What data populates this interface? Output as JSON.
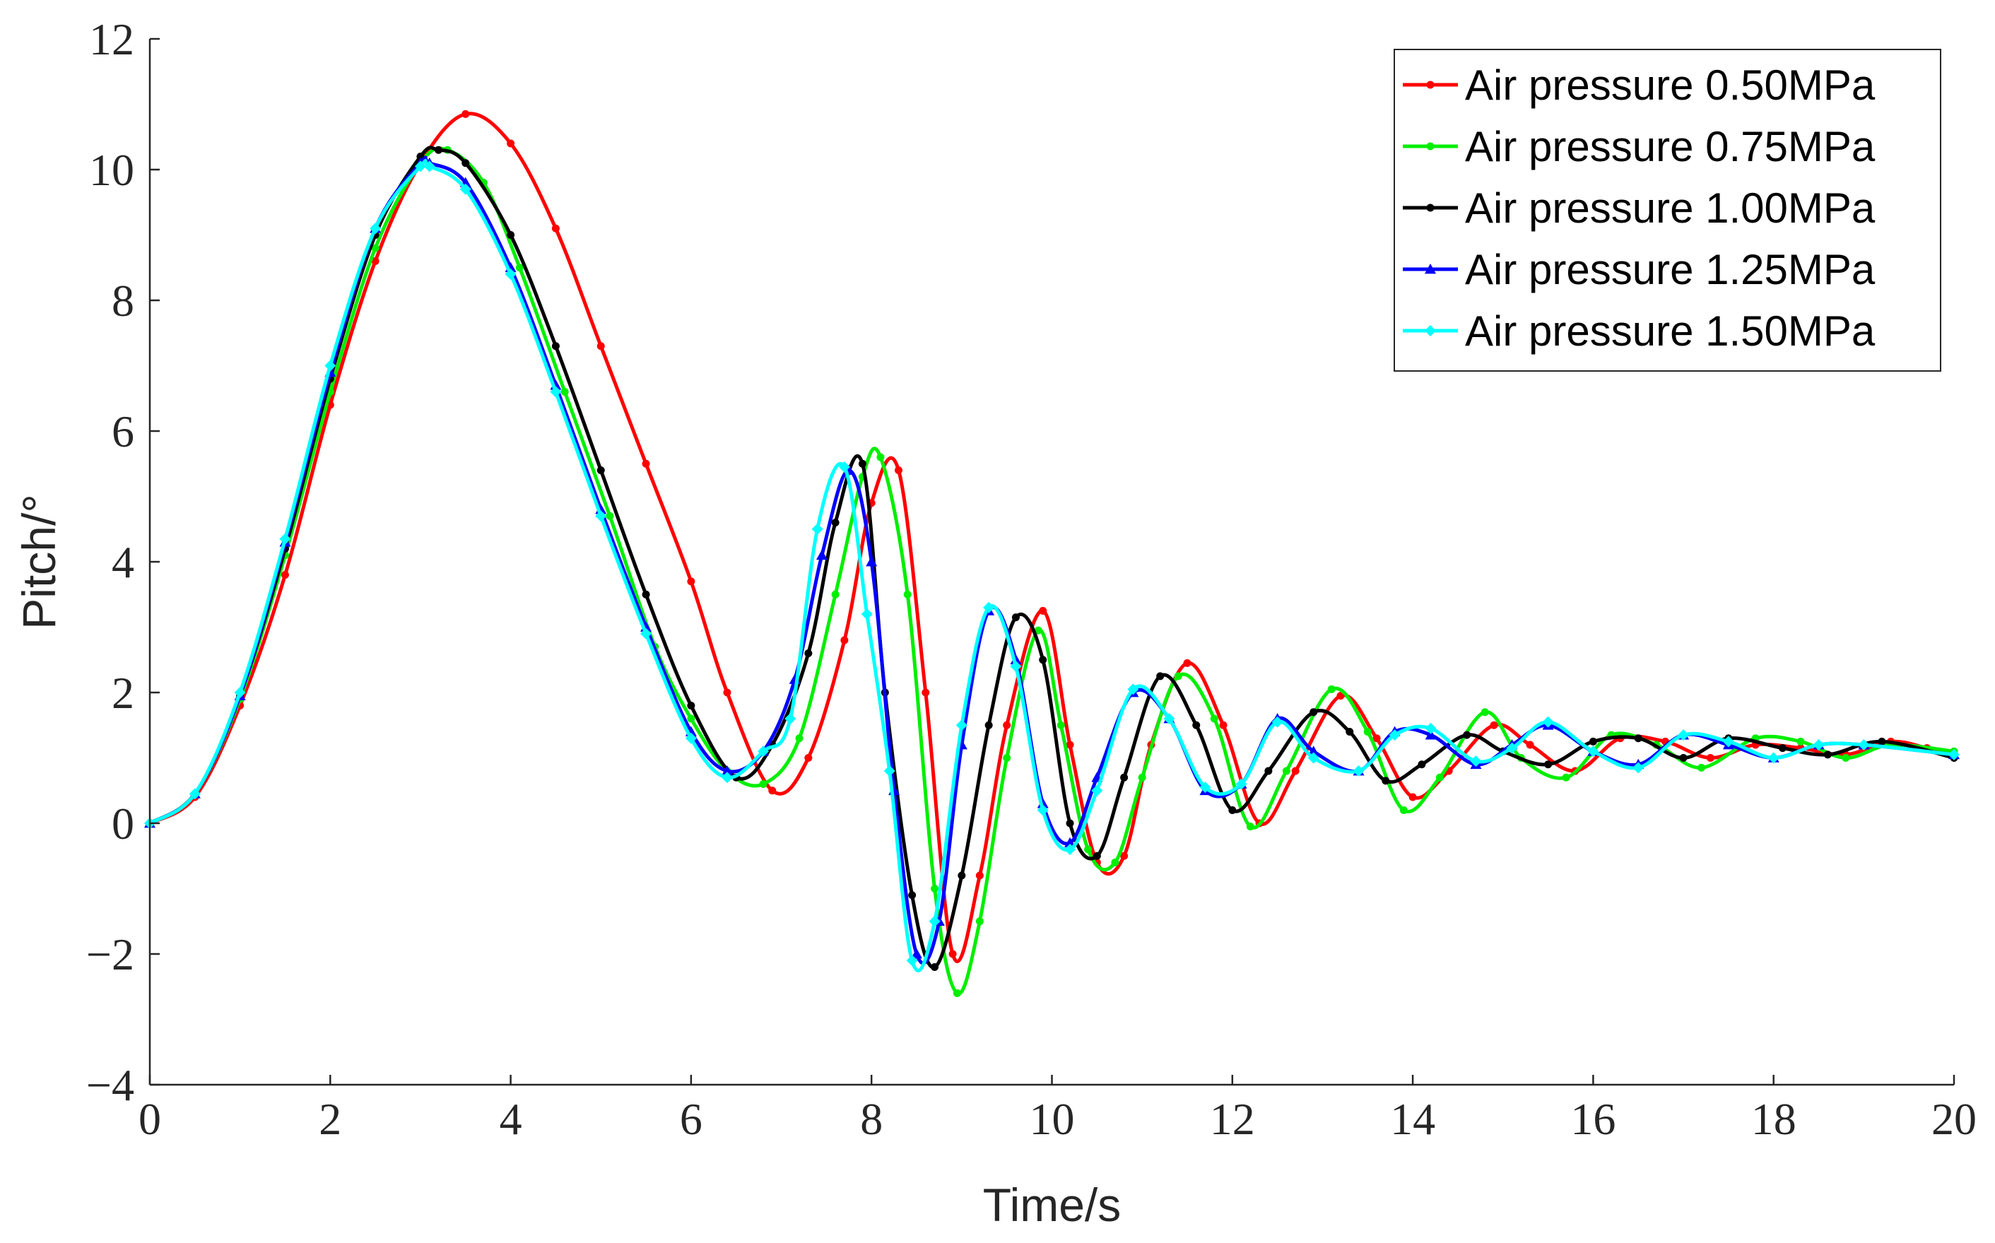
{
  "chart_data": {
    "type": "line",
    "title": "",
    "xlabel": "Time/s",
    "ylabel": "Pitch/°",
    "xlim": [
      0,
      20
    ],
    "ylim": [
      -4,
      12
    ],
    "xticks": [
      0,
      2,
      4,
      6,
      8,
      10,
      12,
      14,
      16,
      18,
      20
    ],
    "yticks": [
      -4,
      -2,
      0,
      2,
      4,
      6,
      8,
      10,
      12
    ],
    "xtick_labels": [
      "0",
      "2",
      "4",
      "6",
      "8",
      "10",
      "12",
      "14",
      "16",
      "18",
      "20"
    ],
    "ytick_labels": [
      "−4",
      "−2",
      "0",
      "2",
      "4",
      "6",
      "8",
      "10",
      "12"
    ],
    "grid": false,
    "legend_position": "top-right",
    "series": [
      {
        "name": "Air pressure 0.50MPa",
        "color": "#ff0000",
        "marker": "dot",
        "x": [
          0,
          0.5,
          1,
          1.5,
          2,
          2.5,
          3,
          3.5,
          4,
          4.5,
          5,
          5.5,
          6,
          6.4,
          6.9,
          7.3,
          7.7,
          8.0,
          8.3,
          8.6,
          8.9,
          9.2,
          9.5,
          9.9,
          10.2,
          10.5,
          10.8,
          11.1,
          11.5,
          11.9,
          12.3,
          12.7,
          13.2,
          13.6,
          14.0,
          14.4,
          14.9,
          15.3,
          15.8,
          16.3,
          16.8,
          17.3,
          17.8,
          18.3,
          18.8,
          19.3,
          19.7,
          20.0
        ],
        "values": [
          0,
          0.4,
          1.8,
          3.8,
          6.4,
          8.6,
          10.1,
          10.85,
          10.4,
          9.1,
          7.3,
          5.5,
          3.7,
          2.0,
          0.5,
          1.0,
          2.8,
          4.9,
          5.4,
          2.0,
          -2.0,
          -0.8,
          1.5,
          3.25,
          1.2,
          -0.6,
          -0.5,
          1.2,
          2.45,
          1.5,
          0.0,
          0.8,
          1.95,
          1.3,
          0.4,
          0.8,
          1.5,
          1.2,
          0.8,
          1.3,
          1.25,
          1.0,
          1.2,
          1.15,
          1.05,
          1.25,
          1.15,
          1.05
        ]
      },
      {
        "name": "Air pressure 0.75MPa",
        "color": "#00ee00",
        "marker": "dot",
        "x": [
          0,
          0.5,
          1,
          1.5,
          2,
          2.5,
          3,
          3.3,
          3.7,
          4.1,
          4.6,
          5.1,
          5.6,
          6.0,
          6.4,
          6.8,
          7.2,
          7.6,
          7.9,
          8.1,
          8.4,
          8.7,
          8.95,
          9.2,
          9.5,
          9.85,
          10.1,
          10.4,
          10.7,
          11.0,
          11.4,
          11.8,
          12.2,
          12.6,
          13.1,
          13.5,
          13.9,
          14.3,
          14.8,
          15.2,
          15.7,
          16.2,
          16.7,
          17.2,
          17.8,
          18.3,
          18.8,
          19.3,
          20.0
        ],
        "values": [
          0,
          0.45,
          1.9,
          4.1,
          6.6,
          8.8,
          10.1,
          10.3,
          9.8,
          8.5,
          6.6,
          4.7,
          2.7,
          1.6,
          0.8,
          0.6,
          1.3,
          3.5,
          5.3,
          5.6,
          3.5,
          -1.0,
          -2.6,
          -1.5,
          1.0,
          2.95,
          1.5,
          -0.4,
          -0.6,
          0.7,
          2.25,
          1.6,
          -0.05,
          0.8,
          2.05,
          1.4,
          0.2,
          0.7,
          1.7,
          1.0,
          0.7,
          1.35,
          1.2,
          0.85,
          1.3,
          1.25,
          1.0,
          1.2,
          1.1
        ]
      },
      {
        "name": "Air pressure 1.00MPa",
        "color": "#000000",
        "marker": "dot",
        "x": [
          0,
          0.5,
          1,
          1.5,
          2,
          2.5,
          3,
          3.2,
          3.5,
          4.0,
          4.5,
          5.0,
          5.5,
          6.0,
          6.5,
          6.9,
          7.3,
          7.6,
          7.9,
          8.15,
          8.45,
          8.7,
          9.0,
          9.3,
          9.6,
          9.9,
          10.2,
          10.5,
          10.8,
          11.2,
          11.6,
          12.0,
          12.4,
          12.9,
          13.3,
          13.7,
          14.1,
          14.6,
          15.0,
          15.5,
          16.0,
          16.5,
          17.0,
          17.5,
          18.1,
          18.6,
          19.2,
          20.0
        ],
        "values": [
          0,
          0.45,
          1.95,
          4.2,
          6.8,
          9.0,
          10.2,
          10.3,
          10.1,
          9.0,
          7.3,
          5.4,
          3.5,
          1.8,
          0.7,
          1.2,
          2.6,
          4.6,
          5.5,
          2.0,
          -1.1,
          -2.2,
          -0.8,
          1.5,
          3.15,
          2.5,
          0.0,
          -0.5,
          0.7,
          2.25,
          1.5,
          0.2,
          0.8,
          1.7,
          1.4,
          0.65,
          0.9,
          1.35,
          1.1,
          0.9,
          1.25,
          1.3,
          1.0,
          1.3,
          1.15,
          1.05,
          1.25,
          1.0
        ]
      },
      {
        "name": "Air pressure 1.25MPa",
        "color": "#0000ff",
        "marker": "triangle",
        "x": [
          0,
          0.5,
          1,
          1.5,
          2,
          2.5,
          3,
          3.1,
          3.5,
          4.0,
          4.5,
          5.0,
          5.5,
          6.0,
          6.4,
          6.8,
          7.15,
          7.45,
          7.75,
          8.0,
          8.25,
          8.5,
          8.75,
          9.0,
          9.3,
          9.6,
          9.9,
          10.2,
          10.5,
          10.9,
          11.3,
          11.7,
          12.1,
          12.5,
          12.9,
          13.4,
          13.8,
          14.2,
          14.7,
          15.1,
          15.5,
          16.0,
          16.5,
          17.0,
          17.5,
          18.0,
          18.5,
          19.0,
          20.0
        ],
        "values": [
          0,
          0.45,
          1.95,
          4.3,
          6.9,
          9.1,
          10.1,
          10.1,
          9.8,
          8.5,
          6.7,
          4.8,
          3.0,
          1.4,
          0.8,
          1.1,
          2.2,
          4.1,
          5.4,
          4.0,
          0.5,
          -2.0,
          -1.5,
          1.2,
          3.25,
          2.5,
          0.3,
          -0.3,
          0.7,
          2.0,
          1.6,
          0.5,
          0.6,
          1.6,
          1.1,
          0.8,
          1.4,
          1.35,
          0.9,
          1.2,
          1.5,
          1.1,
          0.9,
          1.35,
          1.2,
          1.0,
          1.2,
          1.2,
          1.05
        ]
      },
      {
        "name": "Air pressure 1.50MPa",
        "color": "#00ffff",
        "marker": "diamond",
        "x": [
          0,
          0.5,
          1,
          1.5,
          2,
          2.5,
          3,
          3.1,
          3.5,
          4.0,
          4.5,
          5.0,
          5.5,
          6.0,
          6.4,
          6.8,
          7.1,
          7.4,
          7.7,
          7.95,
          8.2,
          8.45,
          8.7,
          9.0,
          9.3,
          9.6,
          9.9,
          10.2,
          10.5,
          10.9,
          11.3,
          11.7,
          12.1,
          12.5,
          12.9,
          13.4,
          13.8,
          14.2,
          14.7,
          15.1,
          15.5,
          16.0,
          16.5,
          17.0,
          17.5,
          18.0,
          18.5,
          19.0,
          20.0
        ],
        "values": [
          0,
          0.45,
          2.0,
          4.35,
          7.0,
          9.1,
          10.05,
          10.05,
          9.7,
          8.4,
          6.6,
          4.7,
          2.9,
          1.3,
          0.7,
          1.1,
          1.6,
          4.5,
          5.45,
          3.2,
          0.8,
          -2.1,
          -1.5,
          1.5,
          3.3,
          2.4,
          0.2,
          -0.4,
          0.5,
          2.05,
          1.6,
          0.55,
          0.6,
          1.55,
          1.0,
          0.8,
          1.35,
          1.45,
          0.95,
          1.15,
          1.55,
          1.1,
          0.85,
          1.35,
          1.25,
          1.0,
          1.2,
          1.2,
          1.05
        ]
      }
    ]
  }
}
